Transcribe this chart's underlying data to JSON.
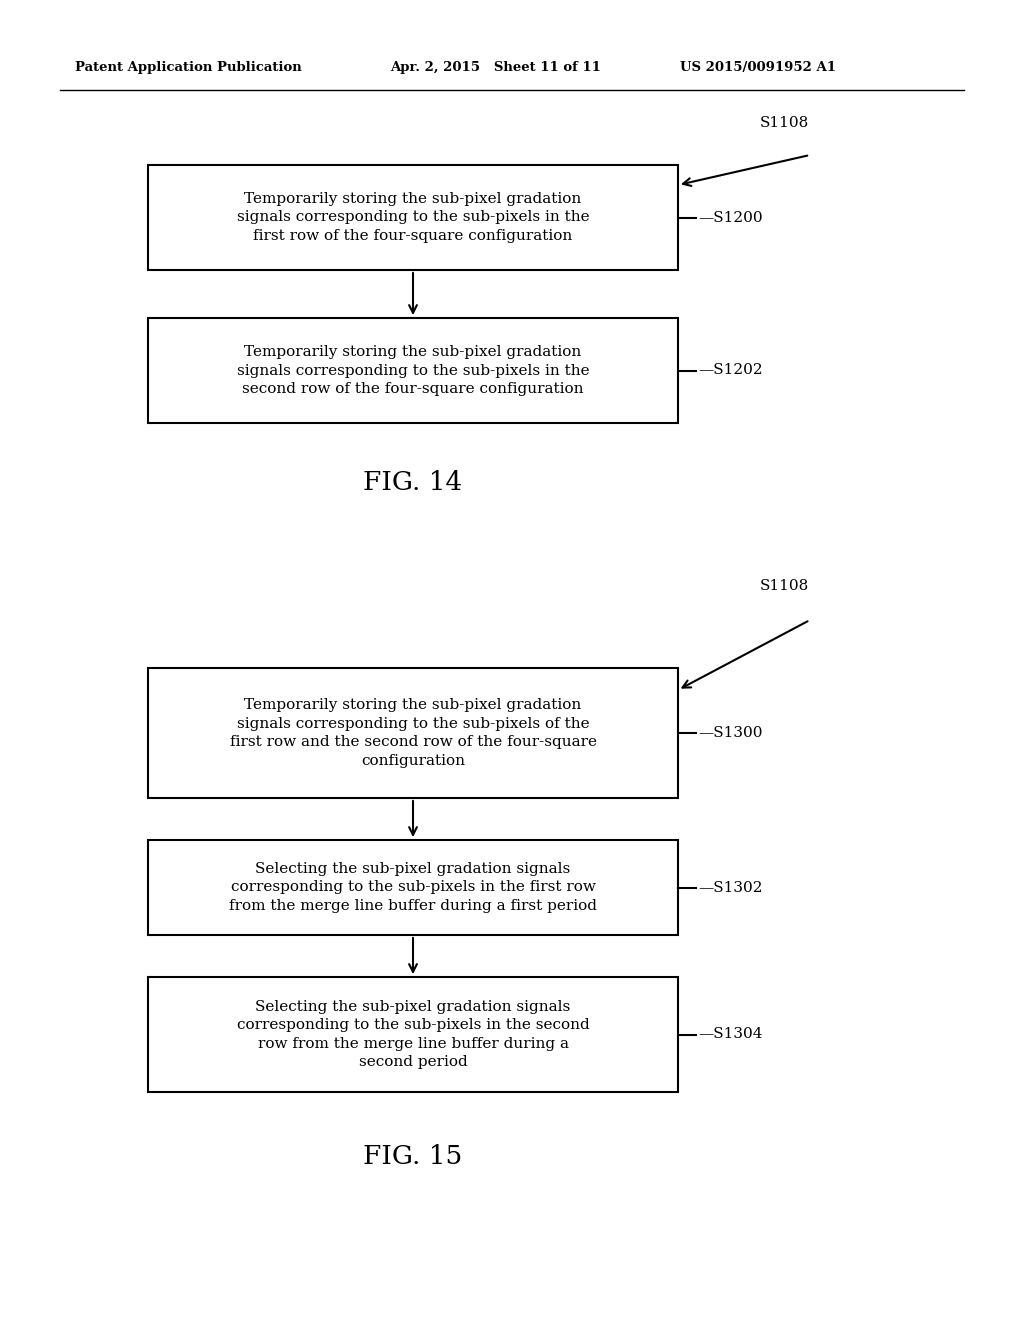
{
  "bg_color": "#ffffff",
  "header_left": "Patent Application Publication",
  "header_mid": "Apr. 2, 2015   Sheet 11 of 11",
  "header_right": "US 2015/0091952 A1",
  "fig14": {
    "caption": "FIG. 14",
    "entry_label": "S1108",
    "boxes": [
      {
        "label": "S1200",
        "text": "Temporarily storing the sub-pixel gradation\nsignals corresponding to the sub-pixels in the\nfirst row of the four-square configuration"
      },
      {
        "label": "S1202",
        "text": "Temporarily storing the sub-pixel gradation\nsignals corresponding to the sub-pixels in the\nsecond row of the four-square configuration"
      }
    ]
  },
  "fig15": {
    "caption": "FIG. 15",
    "entry_label": "S1108",
    "boxes": [
      {
        "label": "S1300",
        "text": "Temporarily storing the sub-pixel gradation\nsignals corresponding to the sub-pixels of the\nfirst row and the second row of the four-square\nconfiguration"
      },
      {
        "label": "S1302",
        "text": "Selecting the sub-pixel gradation signals\ncorresponding to the sub-pixels in the first row\nfrom the merge line buffer during a first period"
      },
      {
        "label": "S1304",
        "text": "Selecting the sub-pixel gradation signals\ncorresponding to the sub-pixels in the second\nrow from the merge line buffer during a\nsecond period"
      }
    ]
  }
}
